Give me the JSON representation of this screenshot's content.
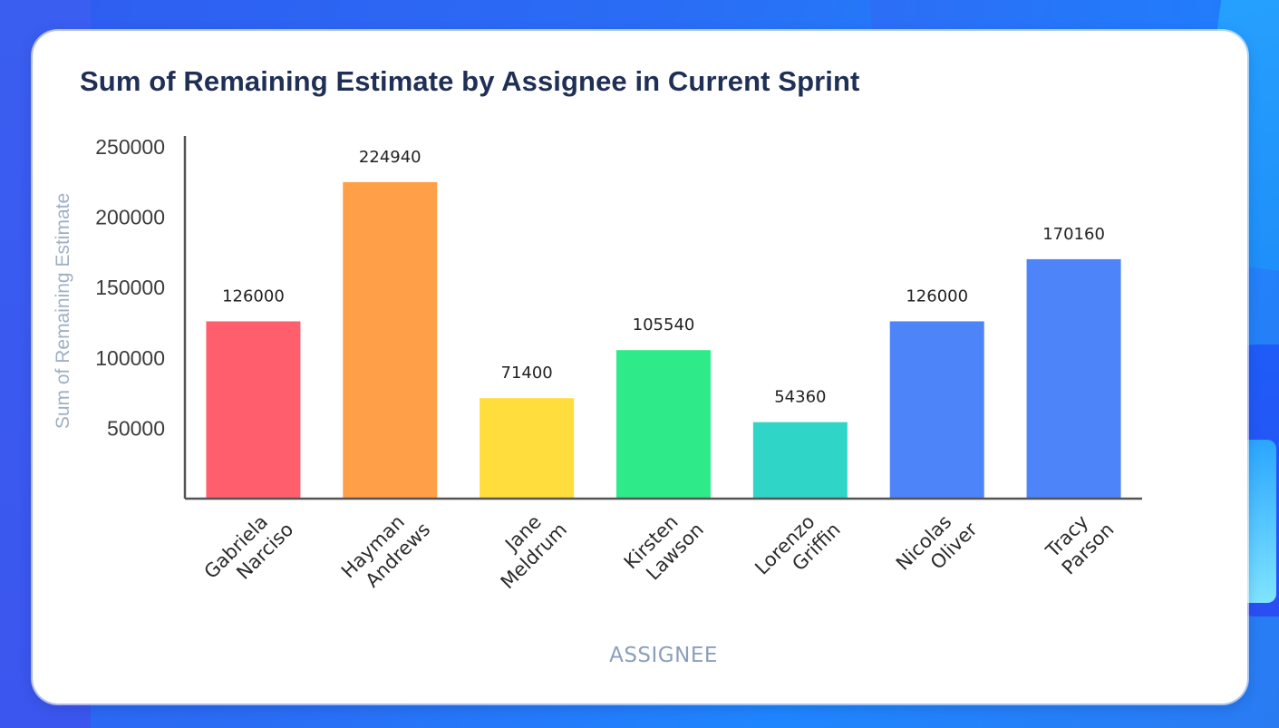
{
  "chart_data": {
    "type": "bar",
    "title": "Sum of Remaining Estimate by Assignee in Current Sprint",
    "xlabel": "ASSIGNEE",
    "ylabel": "Sum of Remaining Estimate",
    "ylim": [
      0,
      250000
    ],
    "yticks": [
      50000,
      100000,
      150000,
      200000,
      250000
    ],
    "categories": [
      [
        "Gabriela",
        "Narciso"
      ],
      [
        "Hayman",
        "Andrews"
      ],
      [
        "Jane",
        "Meldrum"
      ],
      [
        "Kirsten",
        "Lawson"
      ],
      [
        "Lorenzo",
        "Griffin"
      ],
      [
        "Nicolas",
        "Oliver"
      ],
      [
        "Tracy",
        "Parson"
      ]
    ],
    "values": [
      126000,
      224940,
      71400,
      105540,
      54360,
      126000,
      170160
    ],
    "colors": [
      "#ff5f6d",
      "#ff9f47",
      "#ffdd3c",
      "#2eea88",
      "#2fd6c7",
      "#4d84fa",
      "#4d84fa"
    ],
    "grid": false,
    "legend": "none"
  }
}
